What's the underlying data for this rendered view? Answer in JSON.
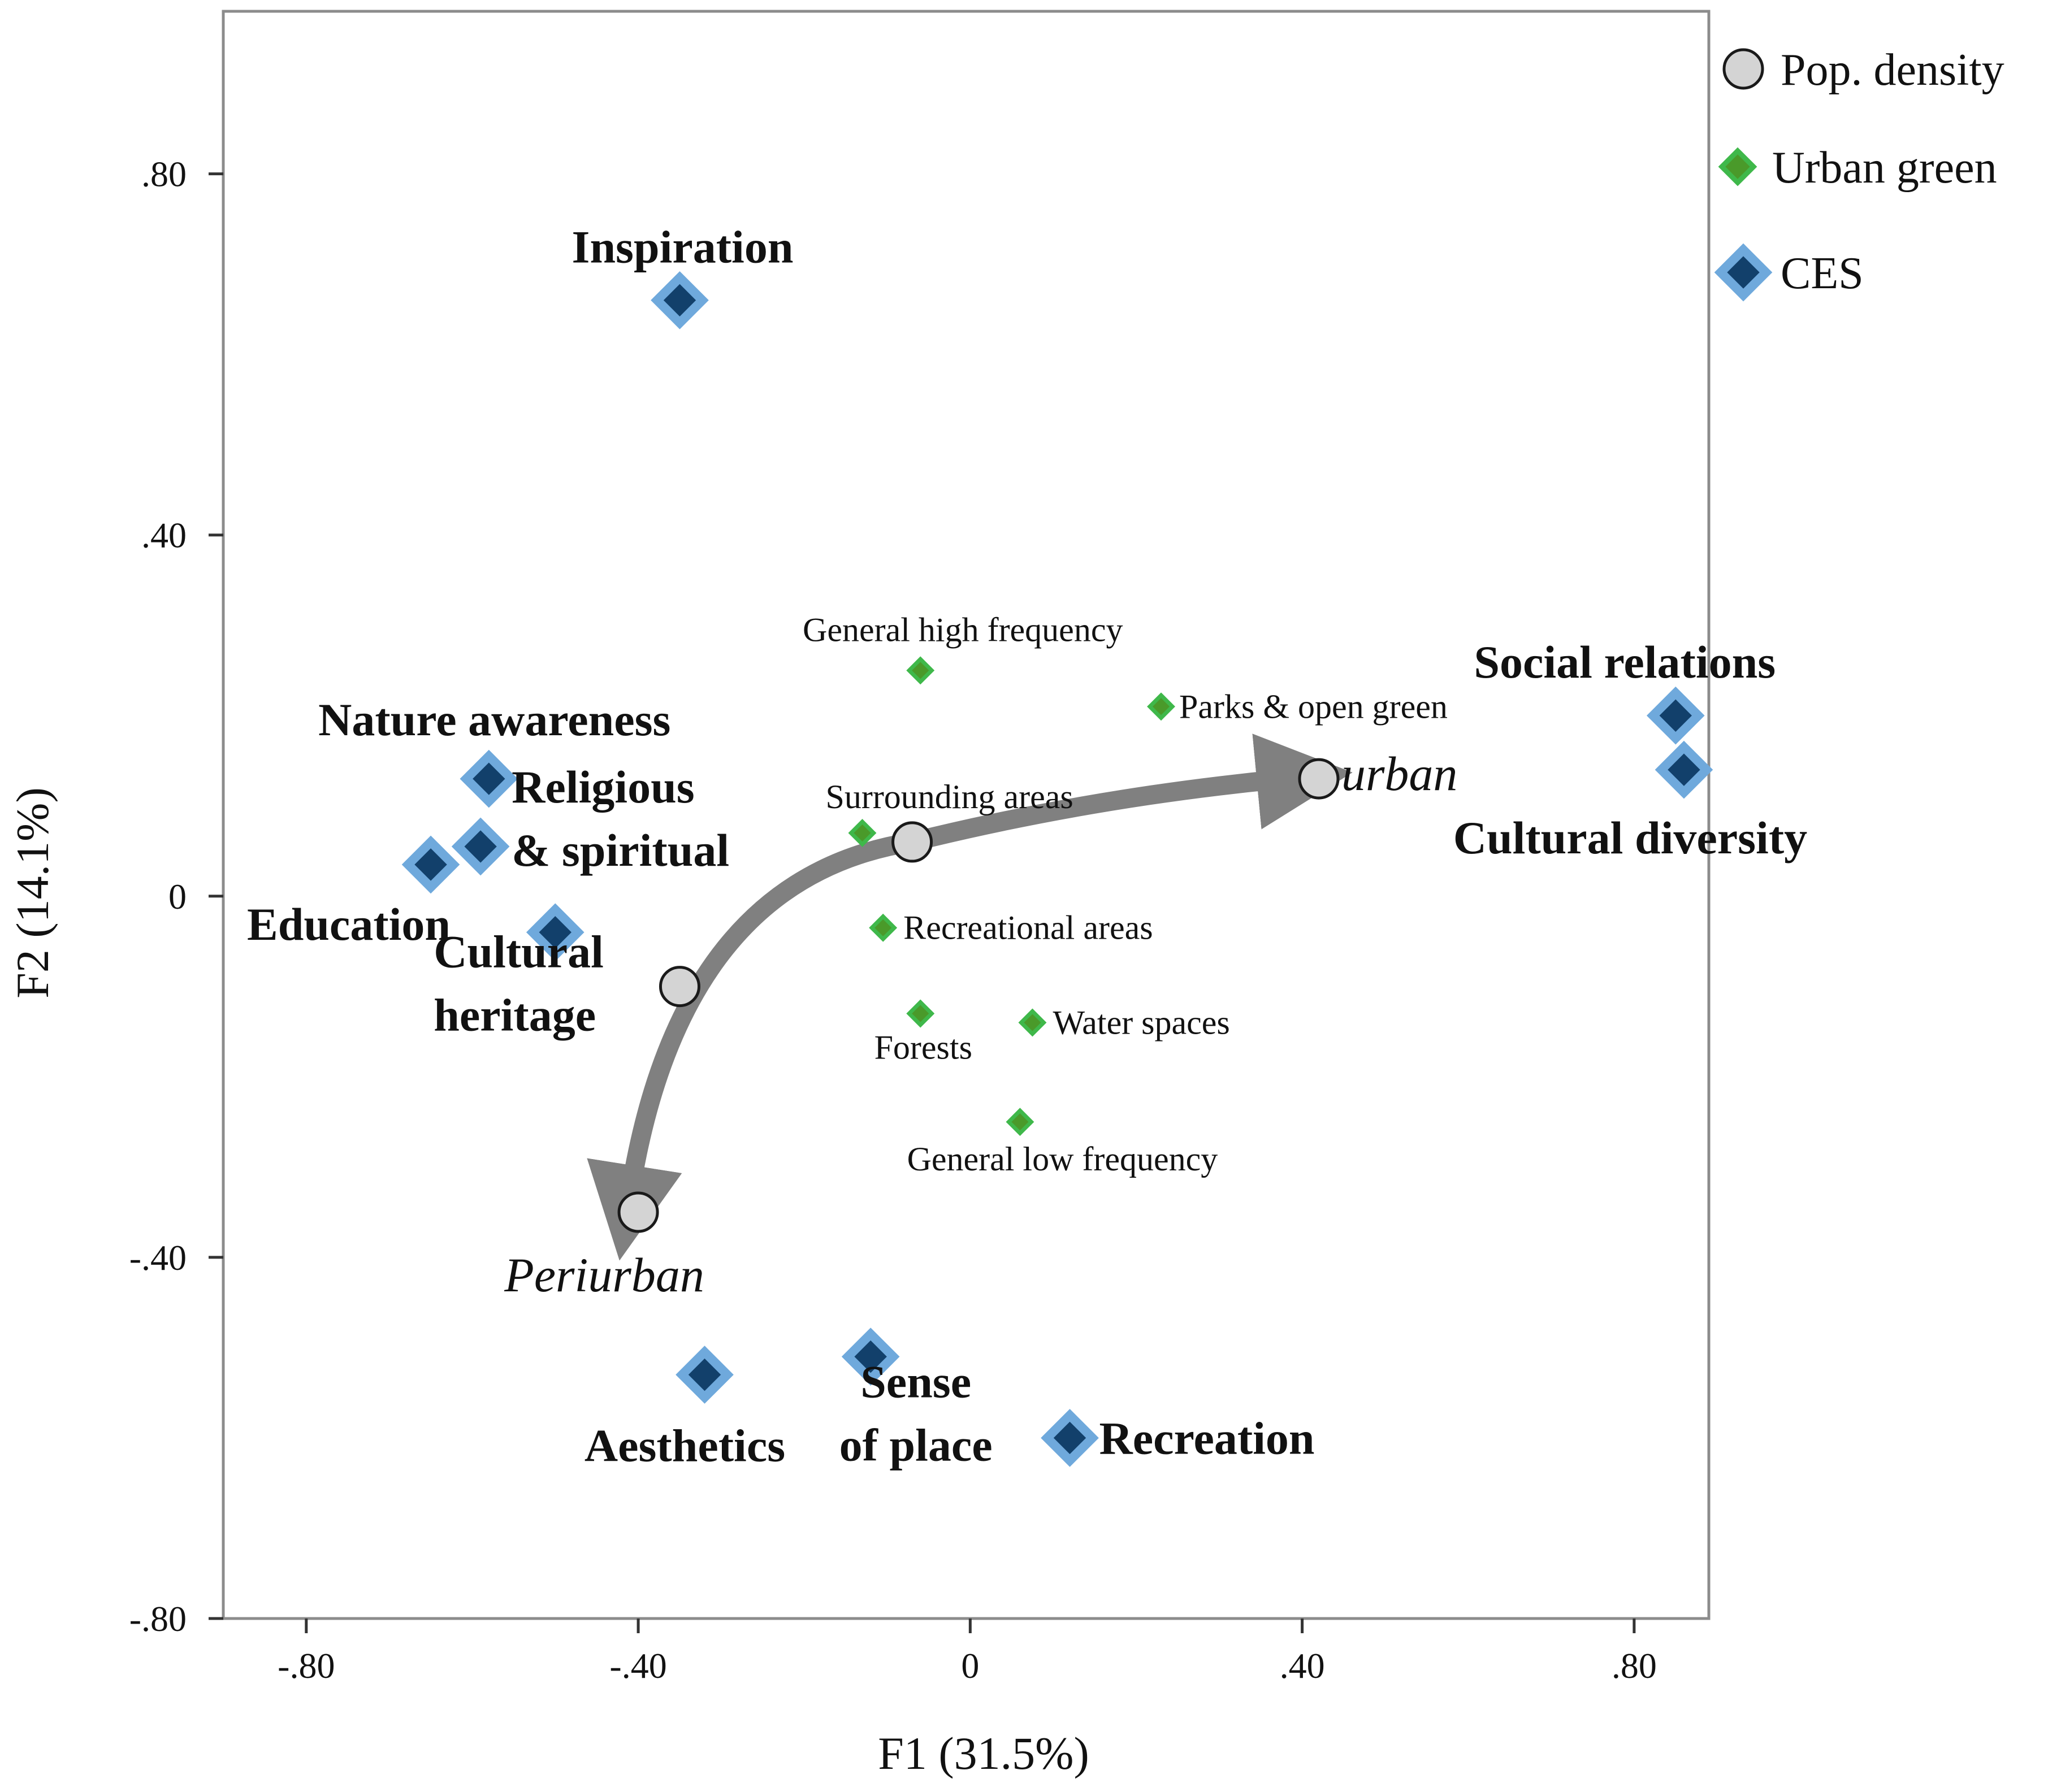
{
  "chart_data": {
    "type": "scatter",
    "xlabel": "F1 (31.5%)",
    "ylabel": "F2 (14.1%)",
    "xlim": [
      -0.9,
      0.89
    ],
    "ylim": [
      -0.8,
      0.98
    ],
    "x_ticks": [
      {
        "value": -0.8,
        "label": "-.80"
      },
      {
        "value": -0.4,
        "label": "-.40"
      },
      {
        "value": 0,
        "label": "0"
      },
      {
        "value": 0.4,
        "label": ".40"
      },
      {
        "value": 0.8,
        "label": ".80"
      }
    ],
    "y_ticks": [
      {
        "value": 0.8,
        "label": ".80"
      },
      {
        "value": 0.4,
        "label": ".40"
      },
      {
        "value": 0,
        "label": "0"
      },
      {
        "value": -0.4,
        "label": "-.40"
      },
      {
        "value": -0.8,
        "label": "-.80"
      }
    ],
    "grid": false,
    "legend_position": "top-right, outside plot",
    "colors": {
      "pop_fill": "#d4d4d4",
      "pop_stroke": "#1a1a1a",
      "green_fill": "#4a9a2a",
      "green_stroke": "#3fb84a",
      "ces_fill": "#12406b",
      "ces_stroke": "#6fa9dc",
      "arrow": "#808080",
      "axis": "#8c8c8c"
    },
    "legend": [
      {
        "series": "pop",
        "label": "Pop. density"
      },
      {
        "series": "green",
        "label": "Urban green"
      },
      {
        "series": "ces",
        "label": "CES"
      }
    ],
    "series": [
      {
        "key": "pop",
        "name": "Pop. density",
        "marker": "circle",
        "points": [
          {
            "x": 0.42,
            "y": 0.13,
            "label": "urban",
            "anchor": "start",
            "dx": 40,
            "dy": 0
          },
          {
            "x": -0.07,
            "y": 0.06,
            "label": ""
          },
          {
            "x": -0.35,
            "y": -0.1,
            "label": ""
          },
          {
            "x": -0.4,
            "y": -0.35,
            "label": "Periurban",
            "anchor": "middle",
            "dx": -60,
            "dy": 120
          }
        ]
      },
      {
        "key": "green",
        "name": "Urban green",
        "marker": "diamond-small",
        "points": [
          {
            "x": -0.06,
            "y": 0.25,
            "label": "General high frequency",
            "anchor": "middle",
            "dx": 75,
            "dy": -72
          },
          {
            "x": 0.23,
            "y": 0.21,
            "label": "Parks & open green",
            "anchor": "start",
            "dx": 32,
            "dy": 0
          },
          {
            "x": -0.13,
            "y": 0.07,
            "label": "Surrounding areas",
            "anchor": "start",
            "dx": -65,
            "dy": -64
          },
          {
            "x": -0.105,
            "y": -0.035,
            "label": "Recreational areas",
            "anchor": "start",
            "dx": 36,
            "dy": 0
          },
          {
            "x": -0.06,
            "y": -0.13,
            "label": "Forests",
            "anchor": "middle",
            "dx": 5,
            "dy": 60
          },
          {
            "x": 0.075,
            "y": -0.14,
            "label": "Water spaces",
            "anchor": "start",
            "dx": 36,
            "dy": 0
          },
          {
            "x": 0.06,
            "y": -0.25,
            "label": "General low frequency",
            "anchor": "middle",
            "dx": 75,
            "dy": 66
          }
        ]
      },
      {
        "key": "ces",
        "name": "CES",
        "marker": "diamond",
        "points": [
          {
            "x": -0.35,
            "y": 0.66,
            "label": [
              "Inspiration"
            ],
            "anchor": "middle",
            "dx": 5,
            "dy": -95
          },
          {
            "x": -0.58,
            "y": 0.13,
            "label": [
              "Nature awareness"
            ],
            "anchor": "middle",
            "dx": 10,
            "dy": -105
          },
          {
            "x": -0.59,
            "y": 0.055,
            "label": [
              "Religious",
              "& spiritual"
            ],
            "anchor": "start",
            "dx": 55,
            "dy": -50
          },
          {
            "x": -0.65,
            "y": 0.035,
            "label": [
              "Education"
            ],
            "anchor": "middle",
            "dx": -145,
            "dy": 105
          },
          {
            "x": -0.5,
            "y": -0.04,
            "label": [
              "Cultural",
              "heritage"
            ],
            "anchor": "start",
            "dx": -215,
            "dy": 90
          },
          {
            "x": 0.85,
            "y": 0.2,
            "label": [
              "Social relations"
            ],
            "anchor": "middle",
            "dx": -90,
            "dy": -95
          },
          {
            "x": 0.86,
            "y": 0.14,
            "label": [
              "Cultural diversity"
            ],
            "anchor": "middle",
            "dx": -95,
            "dy": 120
          },
          {
            "x": -0.32,
            "y": -0.53,
            "label": [
              "Aesthetics"
            ],
            "anchor": "middle",
            "dx": -35,
            "dy": 125
          },
          {
            "x": -0.12,
            "y": -0.51,
            "label": [
              "Sense",
              "of place"
            ],
            "anchor": "middle",
            "dx": 80,
            "dy": 100
          },
          {
            "x": 0.12,
            "y": -0.6,
            "label": [
              "Recreation"
            ],
            "anchor": "start",
            "dx": 52,
            "dy": 0
          }
        ]
      }
    ],
    "trend_arrows": [
      {
        "from": 1,
        "to": 0,
        "path": [
          [
            -0.07,
            0.06
          ],
          [
            0.15,
            0.11
          ],
          [
            0.38,
            0.13
          ]
        ]
      },
      {
        "from": 1,
        "to": 3,
        "path": [
          [
            -0.07,
            0.06
          ],
          [
            -0.35,
            0.02
          ],
          [
            -0.41,
            -0.33
          ]
        ]
      }
    ]
  }
}
